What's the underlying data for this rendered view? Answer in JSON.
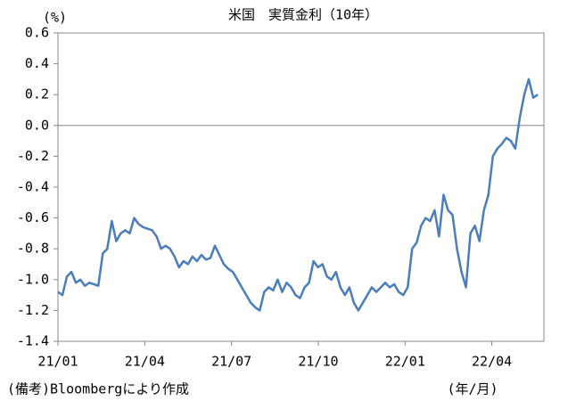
{
  "chart_data": {
    "type": "line",
    "title": "米国　実質金利（10年）",
    "y_label": "(%)",
    "x_unit_label": "(年/月)",
    "note": "(備考)Bloombergにより作成",
    "xlim": [
      0,
      16.8
    ],
    "xticks": [
      {
        "value": 0,
        "label": "21/01"
      },
      {
        "value": 3,
        "label": "21/04"
      },
      {
        "value": 6,
        "label": "21/07"
      },
      {
        "value": 9,
        "label": "21/10"
      },
      {
        "value": 12,
        "label": "22/01"
      },
      {
        "value": 15,
        "label": "22/04"
      }
    ],
    "ylim": [
      -1.4,
      0.6
    ],
    "yticks": [
      0.6,
      0.4,
      0.2,
      {
        "value": 0,
        "label": "0.0"
      },
      -0.2,
      -0.4,
      -0.6,
      -0.8,
      {
        "value": -1,
        "label": "-1.0"
      },
      -1.2,
      -1.4
    ],
    "zero_line": true,
    "x": [
      0,
      0.155,
      0.31,
      0.465,
      0.62,
      0.775,
      0.93,
      1.085,
      1.24,
      1.395,
      1.55,
      1.705,
      1.86,
      2.015,
      2.17,
      2.325,
      2.48,
      2.635,
      2.79,
      2.945,
      3.1,
      3.255,
      3.41,
      3.565,
      3.72,
      3.875,
      4.03,
      4.185,
      4.34,
      4.495,
      4.65,
      4.805,
      4.96,
      5.115,
      5.27,
      5.425,
      5.58,
      5.735,
      5.89,
      6.045,
      6.2,
      6.355,
      6.51,
      6.665,
      6.82,
      6.975,
      7.13,
      7.285,
      7.44,
      7.595,
      7.75,
      7.905,
      8.06,
      8.215,
      8.37,
      8.525,
      8.68,
      8.835,
      8.99,
      9.145,
      9.3,
      9.455,
      9.61,
      9.765,
      9.92,
      10.075,
      10.23,
      10.385,
      10.54,
      10.695,
      10.85,
      11.005,
      11.16,
      11.315,
      11.47,
      11.625,
      11.78,
      11.935,
      12.09,
      12.245,
      12.4,
      12.555,
      12.71,
      12.865,
      13.02,
      13.175,
      13.33,
      13.485,
      13.64,
      13.795,
      13.95,
      14.105,
      14.26,
      14.415,
      14.57,
      14.725,
      14.88,
      15.035,
      15.19,
      15.345,
      15.5,
      15.655,
      15.81,
      15.965,
      16.12,
      16.275,
      16.43,
      16.585
    ],
    "series": [
      {
        "color": "#4a7ebb",
        "values": [
          -1.08,
          -1.1,
          -0.98,
          -0.95,
          -1.02,
          -1.0,
          -1.04,
          -1.02,
          -1.03,
          -1.04,
          -0.83,
          -0.8,
          -0.62,
          -0.75,
          -0.7,
          -0.68,
          -0.7,
          -0.6,
          -0.64,
          -0.66,
          -0.67,
          -0.68,
          -0.72,
          -0.8,
          -0.78,
          -0.8,
          -0.85,
          -0.92,
          -0.88,
          -0.9,
          -0.85,
          -0.88,
          -0.84,
          -0.87,
          -0.86,
          -0.78,
          -0.84,
          -0.9,
          -0.93,
          -0.95,
          -1.0,
          -1.05,
          -1.1,
          -1.15,
          -1.18,
          -1.2,
          -1.08,
          -1.05,
          -1.07,
          -1.0,
          -1.08,
          -1.02,
          -1.05,
          -1.1,
          -1.12,
          -1.05,
          -1.02,
          -0.88,
          -0.92,
          -0.9,
          -0.98,
          -1.0,
          -0.95,
          -1.05,
          -1.1,
          -1.05,
          -1.15,
          -1.2,
          -1.15,
          -1.1,
          -1.05,
          -1.08,
          -1.05,
          -1.02,
          -1.05,
          -1.03,
          -1.08,
          -1.1,
          -1.05,
          -0.8,
          -0.76,
          -0.65,
          -0.6,
          -0.62,
          -0.55,
          -0.72,
          -0.45,
          -0.55,
          -0.58,
          -0.8,
          -0.95,
          -1.05,
          -0.7,
          -0.65,
          -0.75,
          -0.55,
          -0.45,
          -0.2,
          -0.15,
          -0.12,
          -0.08,
          -0.1,
          -0.15,
          0.05,
          0.2,
          0.3,
          0.18,
          0.2
        ]
      }
    ]
  }
}
